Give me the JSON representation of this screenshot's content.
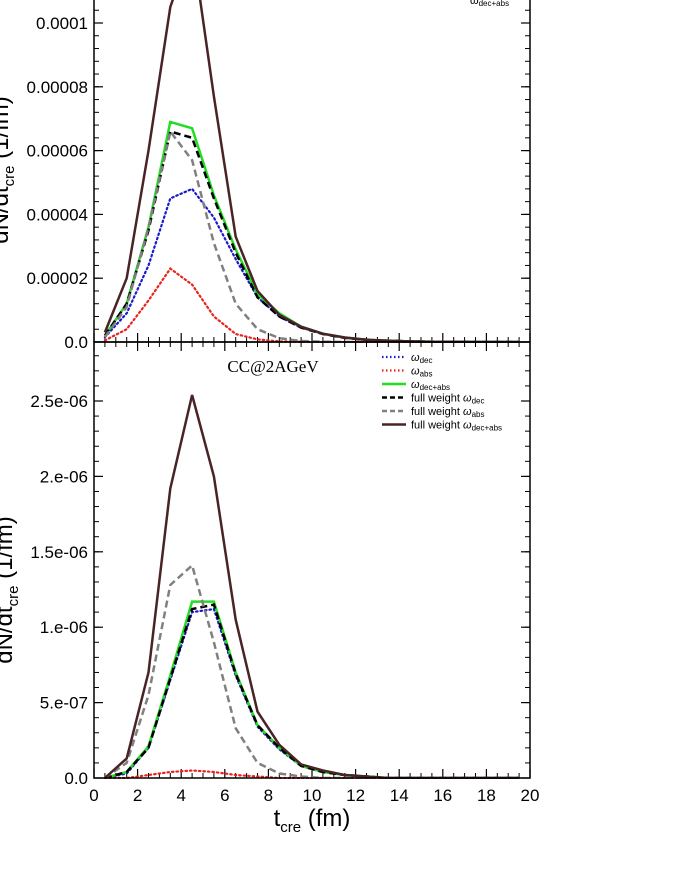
{
  "chart_data": [
    {
      "type": "line",
      "title": "",
      "ylabel": "dN/dt_cre (1/fm)",
      "ylim": [
        0,
        0.000108
      ],
      "ytick_labels": [
        "0.0",
        "0.00002",
        "0.00004",
        "0.00006",
        "0.00008",
        "0.0001"
      ],
      "ytick_values": [
        0,
        2e-05,
        4e-05,
        6e-05,
        8e-05,
        0.0001
      ],
      "legend_visible_fragment": "dec+abs",
      "x": [
        0.5,
        1.5,
        2.5,
        3.5,
        4.5,
        5.5,
        6.5,
        7.5,
        8.5,
        9.5,
        10.5,
        11.5,
        12.5,
        13.5,
        14.5,
        15.5,
        16.5,
        17.5,
        18.5,
        19.5
      ],
      "series": [
        {
          "key": "dec",
          "color": "#1a1acc",
          "dash": "dotted",
          "values": [
            1.5e-06,
            9e-06,
            2.4e-05,
            4.5e-05,
            4.8e-05,
            3.9e-05,
            2.6e-05,
            1.4e-05,
            8e-06,
            4.5e-06,
            2.5e-06,
            1.3e-06,
            7e-07,
            4e-07,
            2e-07,
            1e-07,
            5e-08,
            0.0,
            0.0,
            0.0
          ]
        },
        {
          "key": "abs",
          "color": "#e8241c",
          "dash": "dotted",
          "values": [
            5e-07,
            4e-06,
            1.3e-05,
            2.3e-05,
            1.8e-05,
            8e-06,
            2.5e-06,
            8e-07,
            2e-07,
            5e-08,
            0.0,
            0.0,
            0.0,
            0.0,
            0.0,
            0.0,
            0.0,
            0.0,
            0.0,
            0.0
          ]
        },
        {
          "key": "decabs",
          "color": "#22dd22",
          "dash": "solid",
          "values": [
            2e-06,
            1.2e-05,
            3.6e-05,
            6.9e-05,
            6.7e-05,
            4.6e-05,
            2.9e-05,
            1.5e-05,
            9e-06,
            4.8e-06,
            2.6e-06,
            1.4e-06,
            7e-07,
            4e-07,
            2e-07,
            1e-07,
            5e-08,
            0.0,
            0.0,
            0.0
          ]
        },
        {
          "key": "fw_dec",
          "color": "#000000",
          "dash": "dashed",
          "values": [
            2e-06,
            1.2e-05,
            3.5e-05,
            6.6e-05,
            6.4e-05,
            4.5e-05,
            2.8e-05,
            1.4e-05,
            8e-06,
            4.5e-06,
            2.5e-06,
            1.3e-06,
            7e-07,
            4e-07,
            2e-07,
            1e-07,
            5e-08,
            0.0,
            0.0,
            0.0
          ]
        },
        {
          "key": "fw_abs",
          "color": "#808080",
          "dash": "dashed",
          "values": [
            1.5e-06,
            1.1e-05,
            3.6e-05,
            6.6e-05,
            5.7e-05,
            3.1e-05,
            1.2e-05,
            4e-06,
            1.2e-06,
            3e-07,
            1e-07,
            0.0,
            0.0,
            0.0,
            0.0,
            0.0,
            0.0,
            0.0,
            0.0,
            0.0
          ]
        },
        {
          "key": "fw_decabs",
          "color": "#4a2326",
          "dash": "solid",
          "values": [
            3e-06,
            2e-05,
            6e-05,
            0.000105,
            0.000125,
            7.7e-05,
            3.3e-05,
            1.6e-05,
            8.5e-06,
            4.8e-06,
            2.6e-06,
            1.4e-06,
            7e-07,
            4e-07,
            2e-07,
            1e-07,
            5e-08,
            0.0,
            0.0,
            0.0
          ]
        }
      ]
    },
    {
      "type": "line",
      "title": "CC@2AGeV",
      "xlabel": "t_cre (fm)",
      "ylabel": "dN/dt_cre (1/fm)",
      "xlim": [
        0,
        20
      ],
      "ylim": [
        0,
        2.9e-06
      ],
      "xtick_labels": [
        "0",
        "2",
        "4",
        "6",
        "8",
        "10",
        "12",
        "14",
        "16",
        "18",
        "20"
      ],
      "ytick_labels": [
        "0.0",
        "5.e-07",
        "1.e-06",
        "1.5e-06",
        "2.e-06",
        "2.5e-06"
      ],
      "ytick_values": [
        0,
        5e-07,
        1e-06,
        1.5e-06,
        2e-06,
        2.5e-06
      ],
      "x": [
        0.5,
        1.5,
        2.5,
        3.5,
        4.5,
        5.5,
        6.5,
        7.5,
        8.5,
        9.5,
        10.5,
        11.5,
        12.5,
        13.5,
        14.5,
        15.5,
        16.5,
        17.5,
        18.5,
        19.5
      ],
      "series": [
        {
          "key": "dec",
          "color": "#1a1acc",
          "dash": "dotted",
          "values": [
            0.0,
            3e-08,
            2e-07,
            6.5e-07,
            1.1e-06,
            1.12e-06,
            6.8e-07,
            3.4e-07,
            1.9e-07,
            8e-08,
            4e-08,
            2e-08,
            1e-08,
            0.0,
            0.0,
            0.0,
            0.0,
            0.0,
            0.0,
            0.0
          ]
        },
        {
          "key": "abs",
          "color": "#e8241c",
          "dash": "dotted",
          "values": [
            0.0,
            0.0,
            2e-08,
            4e-08,
            5e-08,
            4e-08,
            2e-08,
            1e-08,
            0.0,
            0.0,
            0.0,
            0.0,
            0.0,
            0.0,
            0.0,
            0.0,
            0.0,
            0.0,
            0.0,
            0.0
          ]
        },
        {
          "key": "decabs",
          "color": "#22dd22",
          "dash": "solid",
          "values": [
            0.0,
            4e-08,
            2.1e-07,
            6.8e-07,
            1.17e-06,
            1.17e-06,
            7e-07,
            3.5e-07,
            2e-07,
            8e-08,
            4e-08,
            2e-08,
            1e-08,
            0.0,
            0.0,
            0.0,
            0.0,
            0.0,
            0.0,
            0.0
          ]
        },
        {
          "key": "fw_dec",
          "color": "#000000",
          "dash": "dashed",
          "values": [
            0.0,
            4e-08,
            2e-07,
            6.6e-07,
            1.12e-06,
            1.15e-06,
            6.9e-07,
            3.5e-07,
            2e-07,
            8e-08,
            4e-08,
            2e-08,
            1e-08,
            0.0,
            0.0,
            0.0,
            0.0,
            0.0,
            0.0,
            0.0
          ]
        },
        {
          "key": "fw_abs",
          "color": "#808080",
          "dash": "dashed",
          "values": [
            0.0,
            1e-07,
            5.5e-07,
            1.28e-06,
            1.41e-06,
            9e-07,
            3.3e-07,
            1e-07,
            3e-08,
            1e-08,
            0.0,
            0.0,
            0.0,
            0.0,
            0.0,
            0.0,
            0.0,
            0.0,
            0.0,
            0.0
          ]
        },
        {
          "key": "fw_decabs",
          "color": "#4a2326",
          "dash": "solid",
          "values": [
            0.0,
            1.3e-07,
            7e-07,
            1.92e-06,
            2.54e-06,
            2e-06,
            1.05e-06,
            4.4e-07,
            2.2e-07,
            9e-08,
            5e-08,
            2e-08,
            1e-08,
            0.0,
            0.0,
            0.0,
            0.0,
            0.0,
            0.0,
            0.0
          ]
        }
      ]
    }
  ],
  "legend": {
    "placement": "top-right of lower panel",
    "items": [
      {
        "key": "dec",
        "prefix": "",
        "symbol": "ω",
        "sub": "dec",
        "color": "#1a1acc",
        "dash": "dotted"
      },
      {
        "key": "abs",
        "prefix": "",
        "symbol": "ω",
        "sub": "abs",
        "color": "#e8241c",
        "dash": "dotted"
      },
      {
        "key": "decabs",
        "prefix": "",
        "symbol": "ω",
        "sub": "dec+abs",
        "color": "#22dd22",
        "dash": "solid"
      },
      {
        "key": "fw_dec",
        "prefix": "full weight ",
        "symbol": "ω",
        "sub": "dec",
        "color": "#000000",
        "dash": "dashed"
      },
      {
        "key": "fw_abs",
        "prefix": "full weight ",
        "symbol": "ω",
        "sub": "abs",
        "color": "#808080",
        "dash": "dashed"
      },
      {
        "key": "fw_decabs",
        "prefix": "full weight ",
        "symbol": "ω",
        "sub": "dec+abs",
        "color": "#4a2326",
        "dash": "solid"
      }
    ]
  },
  "axis_text": {
    "ylabel_main": "dN/dt",
    "ylabel_sub": "cre",
    "ylabel_unit": " (1/fm)",
    "xlabel_main": "t",
    "xlabel_sub": "cre",
    "xlabel_unit": " (fm)"
  }
}
